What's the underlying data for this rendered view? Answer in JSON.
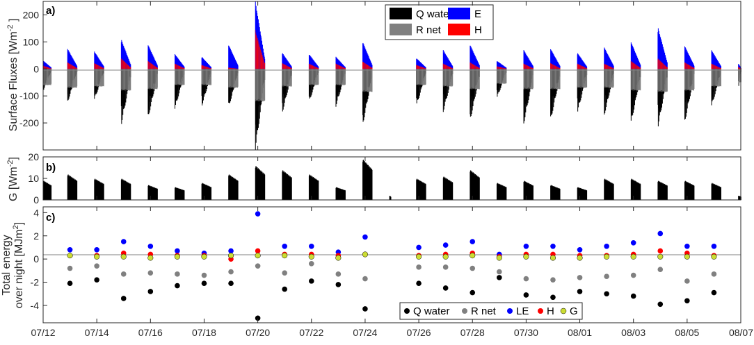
{
  "chart_data": [
    {
      "type": "bar",
      "panel_label": "a)",
      "ylabel": "Surface Fluxes [Wm-2 ]",
      "ylabel_main": "Surface Fluxes [Wm",
      "ylabel_sup": "-2",
      "ylabel_end": " ]",
      "ylim": [
        -300,
        250
      ],
      "yticks": [
        "200",
        "100",
        "0",
        "-100",
        "-200"
      ],
      "ytick_values": [
        200,
        100,
        0,
        -100,
        -200
      ],
      "legend": [
        "Q water",
        "R net",
        "E",
        "H"
      ],
      "colors": {
        "Q water": "#000000",
        "R net": "#808080",
        "E": "#0000ff",
        "H": "#ff0000"
      },
      "x_start_day": 12.0,
      "x_end_day": 38.0,
      "nights": [
        {
          "start": 12.0,
          "end": 12.3,
          "q": -80,
          "r": -60,
          "e": 30,
          "h": 12
        },
        {
          "start": 12.9,
          "end": 13.25,
          "q": -125,
          "r": -70,
          "e": 75,
          "h": 25
        },
        {
          "start": 13.9,
          "end": 14.25,
          "q": -115,
          "r": -65,
          "e": 65,
          "h": 22
        },
        {
          "start": 14.9,
          "end": 15.25,
          "q": -210,
          "r": -80,
          "e": 110,
          "h": 40
        },
        {
          "start": 15.9,
          "end": 16.25,
          "q": -185,
          "r": -75,
          "e": 90,
          "h": 30
        },
        {
          "start": 16.9,
          "end": 17.25,
          "q": -150,
          "r": -60,
          "e": 55,
          "h": 20
        },
        {
          "start": 17.9,
          "end": 18.25,
          "q": -140,
          "r": -60,
          "e": 45,
          "h": 15
        },
        {
          "start": 18.9,
          "end": 19.25,
          "q": -145,
          "r": -70,
          "e": 90,
          "h": 5
        },
        {
          "start": 19.9,
          "end": 20.25,
          "q": -300,
          "r": -120,
          "e": 250,
          "h": 145
        },
        {
          "start": 20.9,
          "end": 21.25,
          "q": -165,
          "r": -65,
          "e": 60,
          "h": 22
        },
        {
          "start": 21.9,
          "end": 22.25,
          "q": -125,
          "r": -60,
          "e": 55,
          "h": 20
        },
        {
          "start": 22.9,
          "end": 23.25,
          "q": -140,
          "r": -60,
          "e": 45,
          "h": 20
        },
        {
          "start": 23.9,
          "end": 24.25,
          "q": -210,
          "r": -85,
          "e": 100,
          "h": 28
        },
        {
          "start": 25.9,
          "end": 26.25,
          "q": -140,
          "r": -60,
          "e": 40,
          "h": 15
        },
        {
          "start": 26.9,
          "end": 27.25,
          "q": -160,
          "r": -65,
          "e": 70,
          "h": 20
        },
        {
          "start": 27.9,
          "end": 28.25,
          "q": -195,
          "r": -75,
          "e": 90,
          "h": 25
        },
        {
          "start": 28.9,
          "end": 29.25,
          "q": -110,
          "r": -55,
          "e": 30,
          "h": 10
        },
        {
          "start": 29.9,
          "end": 30.25,
          "q": -205,
          "r": -75,
          "e": 70,
          "h": 20
        },
        {
          "start": 30.9,
          "end": 31.25,
          "q": -195,
          "r": -75,
          "e": 75,
          "h": 22
        },
        {
          "start": 31.9,
          "end": 32.25,
          "q": -165,
          "r": -70,
          "e": 60,
          "h": 20
        },
        {
          "start": 32.9,
          "end": 33.25,
          "q": -175,
          "r": -70,
          "e": 80,
          "h": 20
        },
        {
          "start": 33.9,
          "end": 34.25,
          "q": -205,
          "r": -80,
          "e": 100,
          "h": 30
        },
        {
          "start": 34.9,
          "end": 35.25,
          "q": -220,
          "r": -85,
          "e": 155,
          "h": 40
        },
        {
          "start": 35.9,
          "end": 36.25,
          "q": -200,
          "r": -80,
          "e": 85,
          "h": 25
        },
        {
          "start": 36.9,
          "end": 37.25,
          "q": -140,
          "r": -65,
          "e": 70,
          "h": 20
        },
        {
          "start": 37.9,
          "end": 38.0,
          "q": -70,
          "r": -50,
          "e": 20,
          "h": 8
        }
      ]
    },
    {
      "type": "bar",
      "panel_label": "b)",
      "ylabel": "G [Wm-2]",
      "ylabel_main": "G [Wm",
      "ylabel_sup": "-2",
      "ylabel_end": "]",
      "ylim": [
        0,
        20
      ],
      "yticks": [
        "20",
        "10",
        "0"
      ],
      "ytick_values": [
        20,
        10,
        0
      ],
      "x_start_day": 12.0,
      "x_end_day": 38.0,
      "nights": [
        {
          "start": 12.0,
          "end": 12.3,
          "g": 9
        },
        {
          "start": 12.9,
          "end": 13.25,
          "g": 12
        },
        {
          "start": 13.9,
          "end": 14.25,
          "g": 10
        },
        {
          "start": 14.9,
          "end": 15.25,
          "g": 10
        },
        {
          "start": 15.9,
          "end": 16.25,
          "g": 7
        },
        {
          "start": 16.9,
          "end": 17.25,
          "g": 6
        },
        {
          "start": 17.9,
          "end": 18.25,
          "g": 8
        },
        {
          "start": 18.9,
          "end": 19.25,
          "g": 12
        },
        {
          "start": 19.9,
          "end": 20.25,
          "g": 16
        },
        {
          "start": 20.9,
          "end": 21.25,
          "g": 14
        },
        {
          "start": 21.9,
          "end": 22.25,
          "g": 12
        },
        {
          "start": 22.9,
          "end": 23.25,
          "g": 6
        },
        {
          "start": 23.9,
          "end": 24.25,
          "g": 19
        },
        {
          "start": 24.9,
          "end": 24.95,
          "g": 2
        },
        {
          "start": 25.9,
          "end": 26.25,
          "g": 10
        },
        {
          "start": 26.9,
          "end": 27.25,
          "g": 11
        },
        {
          "start": 27.9,
          "end": 28.25,
          "g": 14
        },
        {
          "start": 28.9,
          "end": 29.25,
          "g": 8
        },
        {
          "start": 29.9,
          "end": 30.25,
          "g": 9
        },
        {
          "start": 30.9,
          "end": 31.25,
          "g": 7
        },
        {
          "start": 31.9,
          "end": 32.25,
          "g": 6
        },
        {
          "start": 32.9,
          "end": 33.25,
          "g": 10
        },
        {
          "start": 33.9,
          "end": 34.25,
          "g": 10
        },
        {
          "start": 34.9,
          "end": 35.25,
          "g": 9
        },
        {
          "start": 35.9,
          "end": 36.25,
          "g": 9
        },
        {
          "start": 36.9,
          "end": 37.25,
          "g": 8
        },
        {
          "start": 37.9,
          "end": 38.0,
          "g": 2
        }
      ]
    },
    {
      "type": "scatter",
      "panel_label": "c)",
      "ylabel_line1": "Total energy",
      "ylabel_line2": "over night [MJm",
      "ylabel_sup": "2",
      "ylabel_end": "]",
      "ylim": [
        -5.5,
        4.5
      ],
      "yticks": [
        "4",
        "2",
        "0",
        "-2",
        "-4"
      ],
      "ytick_values": [
        4,
        2,
        0,
        -2,
        -4
      ],
      "legend": [
        "Q water",
        "R net",
        "LE",
        "H",
        "G"
      ],
      "colors": {
        "Q water": "#000000",
        "R net": "#808080",
        "LE": "#0000ff",
        "H": "#ff0000",
        "G": "#ccdd33"
      },
      "x": [
        13,
        14,
        15,
        16,
        17,
        18,
        19,
        20,
        21,
        22,
        23,
        24,
        26,
        27,
        28,
        29,
        30,
        31,
        32,
        33,
        34,
        35,
        36,
        37
      ],
      "series": [
        {
          "name": "Q water",
          "values": [
            -2.1,
            -1.8,
            -3.4,
            -2.8,
            -2.3,
            -2.1,
            -2.1,
            -5.1,
            -2.6,
            -1.9,
            -2.2,
            -4.3,
            -2.1,
            -2.5,
            -2.9,
            -1.6,
            -3.1,
            -3.3,
            -2.8,
            -3.0,
            -3.2,
            -3.9,
            -3.6,
            -2.9
          ]
        },
        {
          "name": "R net",
          "values": [
            -0.8,
            -0.6,
            -1.3,
            -1.2,
            -1.3,
            -1.4,
            -1.1,
            -0.6,
            -1.2,
            -0.4,
            -1.3,
            -1.7,
            -0.7,
            -0.7,
            -0.8,
            -1.1,
            -1.7,
            -1.8,
            -1.6,
            -1.5,
            -1.4,
            -0.9,
            -1.9,
            -1.3
          ]
        },
        {
          "name": "LE",
          "values": [
            0.8,
            0.8,
            1.5,
            1.1,
            0.7,
            0.5,
            0.7,
            3.9,
            1.1,
            1.1,
            0.6,
            1.9,
            1.0,
            1.2,
            1.5,
            0.4,
            1.1,
            1.1,
            0.8,
            1.1,
            1.4,
            2.2,
            1.1,
            1.1
          ]
        },
        {
          "name": "H",
          "values": [
            0.3,
            0.3,
            0.5,
            0.4,
            0.3,
            0.3,
            0.0,
            0.7,
            0.4,
            0.4,
            0.3,
            0.4,
            0.3,
            0.4,
            0.5,
            0.2,
            0.4,
            0.4,
            0.3,
            0.3,
            0.4,
            0.7,
            0.5,
            0.3
          ]
        },
        {
          "name": "G",
          "values": [
            0.3,
            0.2,
            0.2,
            0.1,
            0.2,
            0.2,
            0.3,
            0.3,
            0.3,
            0.2,
            0.1,
            0.4,
            0.2,
            0.2,
            0.3,
            0.1,
            0.2,
            0.1,
            0.1,
            0.2,
            0.2,
            0.2,
            0.2,
            0.2
          ]
        }
      ],
      "xticks": [
        "07/12",
        "07/14",
        "07/16",
        "07/18",
        "07/20",
        "07/22",
        "07/24",
        "07/26",
        "07/28",
        "07/30",
        "08/01",
        "08/03",
        "08/05",
        "08/07"
      ],
      "xtick_days": [
        12,
        14,
        16,
        18,
        20,
        22,
        24,
        26,
        28,
        30,
        32,
        34,
        36,
        38
      ]
    }
  ]
}
